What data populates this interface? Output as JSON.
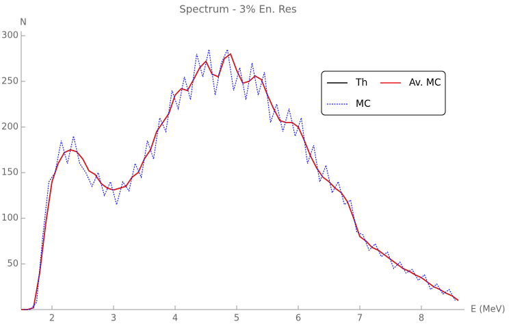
{
  "chart_data": {
    "type": "line",
    "title": "Spectrum - 3% En. Res",
    "x_label": "E (MeV)",
    "y_label": "N",
    "xlim": [
      1.5,
      8.7
    ],
    "ylim": [
      0,
      305
    ],
    "xticks": [
      2,
      3,
      4,
      5,
      6,
      7,
      8
    ],
    "yticks": [
      50,
      100,
      150,
      200,
      250,
      300
    ],
    "legend": "top-right",
    "x": [
      1.5,
      1.6,
      1.7,
      1.8,
      1.9,
      2.0,
      2.1,
      2.2,
      2.3,
      2.4,
      2.5,
      2.6,
      2.7,
      2.8,
      2.9,
      3.0,
      3.1,
      3.2,
      3.3,
      3.4,
      3.5,
      3.6,
      3.7,
      3.8,
      3.9,
      4.0,
      4.1,
      4.2,
      4.3,
      4.4,
      4.5,
      4.6,
      4.7,
      4.8,
      4.9,
      5.0,
      5.1,
      5.2,
      5.3,
      5.4,
      5.5,
      5.6,
      5.7,
      5.8,
      5.9,
      6.0,
      6.1,
      6.2,
      6.3,
      6.4,
      6.5,
      6.6,
      6.7,
      6.8,
      6.9,
      7.0,
      7.1,
      7.2,
      7.3,
      7.4,
      7.5,
      7.6,
      7.7,
      7.8,
      7.9,
      8.0,
      8.1,
      8.2,
      8.3,
      8.4,
      8.5,
      8.6
    ],
    "series": [
      {
        "name": "Th",
        "color": "#000000",
        "dash": "solid",
        "values": [
          0,
          0,
          2,
          40,
          95,
          140,
          160,
          172,
          175,
          173,
          165,
          152,
          148,
          138,
          133,
          131,
          133,
          135,
          145,
          150,
          165,
          175,
          195,
          205,
          215,
          235,
          242,
          240,
          252,
          265,
          272,
          258,
          255,
          275,
          280,
          262,
          248,
          250,
          256,
          252,
          235,
          220,
          207,
          205,
          205,
          200,
          185,
          168,
          155,
          145,
          140,
          133,
          128,
          118,
          100,
          80,
          75,
          68,
          65,
          60,
          55,
          50,
          45,
          42,
          38,
          35,
          30,
          25,
          22,
          18,
          15,
          10
        ]
      },
      {
        "name": "Av. MC",
        "color": "#e8141a",
        "dash": "solid",
        "values": [
          0,
          0,
          2,
          40,
          95,
          140,
          160,
          172,
          175,
          173,
          165,
          152,
          148,
          138,
          133,
          131,
          133,
          135,
          145,
          150,
          165,
          175,
          195,
          205,
          215,
          235,
          242,
          240,
          252,
          265,
          272,
          258,
          255,
          275,
          280,
          262,
          248,
          250,
          256,
          252,
          235,
          220,
          207,
          205,
          205,
          200,
          185,
          168,
          155,
          145,
          140,
          133,
          128,
          118,
          100,
          80,
          75,
          68,
          65,
          60,
          55,
          50,
          45,
          42,
          38,
          35,
          30,
          25,
          22,
          18,
          15,
          10
        ]
      },
      {
        "name": "MC",
        "color": "#1a1aff",
        "dash": "dotted",
        "x": [
          1.55,
          1.65,
          1.75,
          1.85,
          1.95,
          2.05,
          2.15,
          2.25,
          2.35,
          2.45,
          2.55,
          2.65,
          2.75,
          2.85,
          2.95,
          3.05,
          3.15,
          3.25,
          3.35,
          3.45,
          3.55,
          3.65,
          3.75,
          3.85,
          3.95,
          4.05,
          4.15,
          4.25,
          4.35,
          4.45,
          4.55,
          4.65,
          4.75,
          4.85,
          4.95,
          5.05,
          5.15,
          5.25,
          5.35,
          5.45,
          5.55,
          5.65,
          5.75,
          5.85,
          5.95,
          6.05,
          6.15,
          6.25,
          6.35,
          6.45,
          6.55,
          6.65,
          6.75,
          6.85,
          6.95,
          7.05,
          7.15,
          7.25,
          7.35,
          7.45,
          7.55,
          7.65,
          7.75,
          7.85,
          7.95,
          8.05,
          8.15,
          8.25,
          8.35,
          8.45,
          8.55
        ],
        "values": [
          0,
          0,
          8,
          80,
          140,
          150,
          185,
          160,
          190,
          160,
          150,
          135,
          150,
          125,
          140,
          115,
          140,
          130,
          160,
          145,
          185,
          165,
          210,
          195,
          240,
          220,
          255,
          230,
          280,
          255,
          285,
          235,
          270,
          285,
          240,
          265,
          230,
          270,
          235,
          260,
          205,
          225,
          195,
          220,
          190,
          210,
          160,
          180,
          140,
          158,
          128,
          140,
          115,
          120,
          85,
          82,
          65,
          72,
          58,
          63,
          45,
          52,
          40,
          44,
          32,
          38,
          22,
          28,
          17,
          22,
          10
        ]
      }
    ]
  }
}
